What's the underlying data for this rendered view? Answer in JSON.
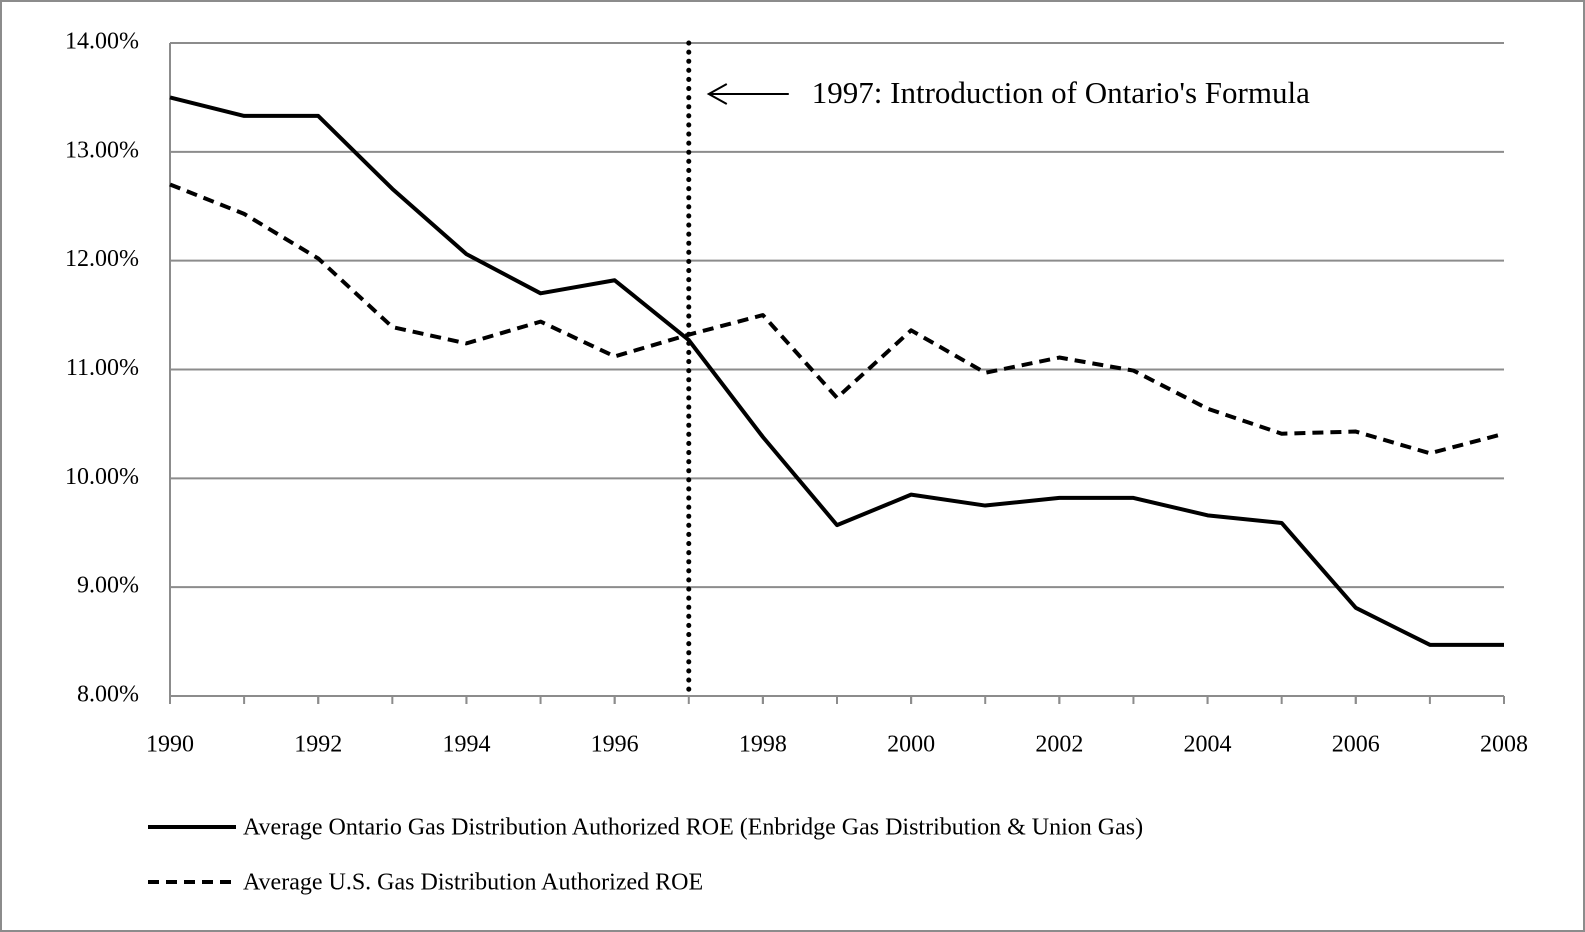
{
  "chart_data": {
    "type": "line",
    "x": [
      1990,
      1991,
      1992,
      1993,
      1994,
      1995,
      1996,
      1997,
      1998,
      1999,
      2000,
      2001,
      2002,
      2003,
      2004,
      2005,
      2006,
      2007,
      2008
    ],
    "series": [
      {
        "name": "Average Ontario Gas Distribution Authorized ROE (Enbridge Gas Distribution & Union Gas)",
        "color": "#000000",
        "line_style": "solid",
        "values": [
          13.5,
          13.33,
          13.33,
          12.66,
          12.06,
          11.7,
          11.82,
          11.27,
          10.38,
          9.57,
          9.85,
          9.75,
          9.82,
          9.82,
          9.66,
          9.59,
          8.81,
          8.47,
          8.47
        ]
      },
      {
        "name": "Average U.S. Gas Distribution Authorized ROE",
        "color": "#000000",
        "line_style": "dashed",
        "values": [
          12.7,
          12.43,
          12.02,
          11.39,
          11.24,
          11.44,
          11.12,
          11.32,
          11.5,
          10.74,
          11.36,
          10.97,
          11.11,
          10.99,
          10.64,
          10.41,
          10.43,
          10.23,
          10.41
        ]
      }
    ],
    "xlim": [
      1990,
      2008
    ],
    "xticks": [
      1990,
      1992,
      1994,
      1996,
      1998,
      2000,
      2002,
      2004,
      2006,
      2008
    ],
    "ylim": [
      8,
      14
    ],
    "yticks": [
      {
        "value": 8,
        "label": "8.00%"
      },
      {
        "value": 9,
        "label": "9.00%"
      },
      {
        "value": 10,
        "label": "10.00%"
      },
      {
        "value": 11,
        "label": "11.00%"
      },
      {
        "value": 12,
        "label": "12.00%"
      },
      {
        "value": 13,
        "label": "13.00%"
      },
      {
        "value": 14,
        "label": "14.00%"
      }
    ],
    "grid": true,
    "legend": "bottom",
    "annotations": [
      {
        "x": 1997,
        "text": "1997:  Introduction of Ontario's Formula"
      }
    ]
  }
}
